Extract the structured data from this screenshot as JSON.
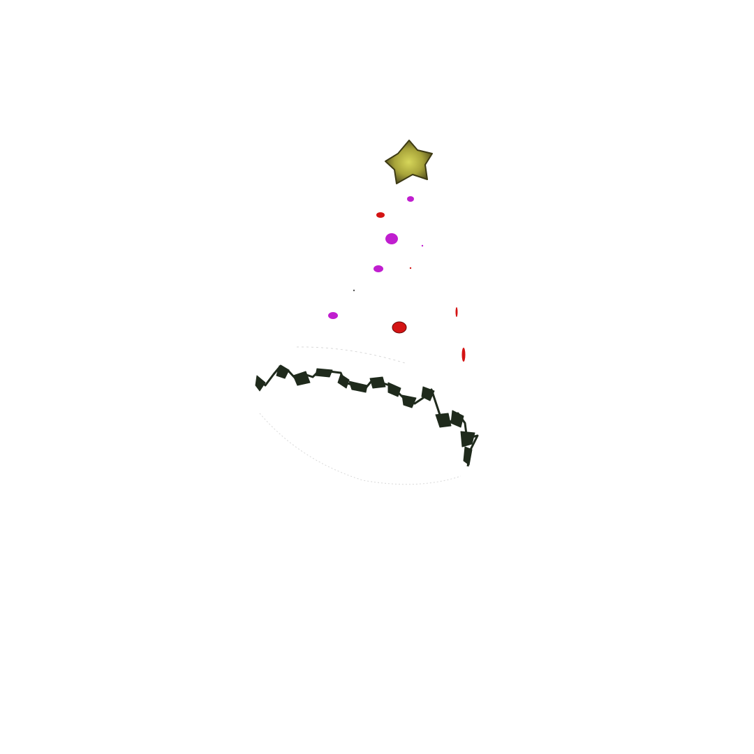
{
  "scene": {
    "subject": "party-hat",
    "background_color": "#ffffff",
    "star_color": "#a8a43a",
    "dot_colors": [
      "#c01ecf",
      "#d41414"
    ],
    "trim_color": "#1f2a1c"
  }
}
